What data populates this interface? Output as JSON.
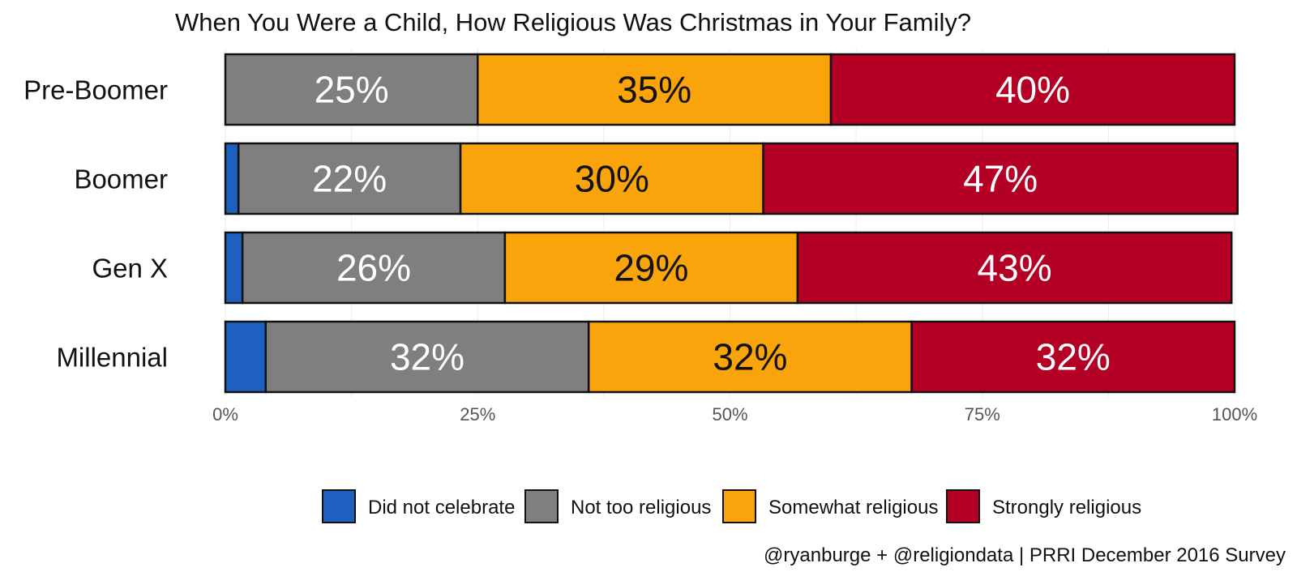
{
  "chart_data": {
    "type": "bar",
    "orientation": "horizontal",
    "stacked": true,
    "title": "When You Were a Child, How Religious Was Christmas in Your Family?",
    "caption": "@ryanburge + @religiondata | PRRI December 2016 Survey",
    "categories": [
      "Pre-Boomer",
      "Boomer",
      "Gen X",
      "Millennial"
    ],
    "xlim": [
      0,
      100
    ],
    "xticks": [
      0,
      25,
      50,
      75,
      100
    ],
    "xtick_labels": [
      "0%",
      "25%",
      "50%",
      "75%",
      "100%"
    ],
    "grid": true,
    "legend_position": "bottom",
    "series": [
      {
        "name": "Did not celebrate",
        "color": "#1f5fbf",
        "text_color": "#ffffff",
        "values": [
          0,
          1.3,
          1.7,
          4.0
        ],
        "labels": [
          "",
          "",
          "",
          ""
        ]
      },
      {
        "name": "Not too religious",
        "color": "#7f7f7f",
        "text_color": "#ffffff",
        "values": [
          25,
          22,
          26,
          32
        ],
        "labels": [
          "25%",
          "22%",
          "26%",
          "32%"
        ]
      },
      {
        "name": "Somewhat religious",
        "color": "#f9a40b",
        "text_color": "#111111",
        "values": [
          35,
          30,
          29,
          32
        ],
        "labels": [
          "35%",
          "30%",
          "29%",
          "32%"
        ]
      },
      {
        "name": "Strongly religious",
        "color": "#b30024",
        "text_color": "#ffffff",
        "values": [
          40,
          47,
          43,
          32
        ],
        "labels": [
          "40%",
          "47%",
          "43%",
          "32%"
        ]
      }
    ]
  }
}
